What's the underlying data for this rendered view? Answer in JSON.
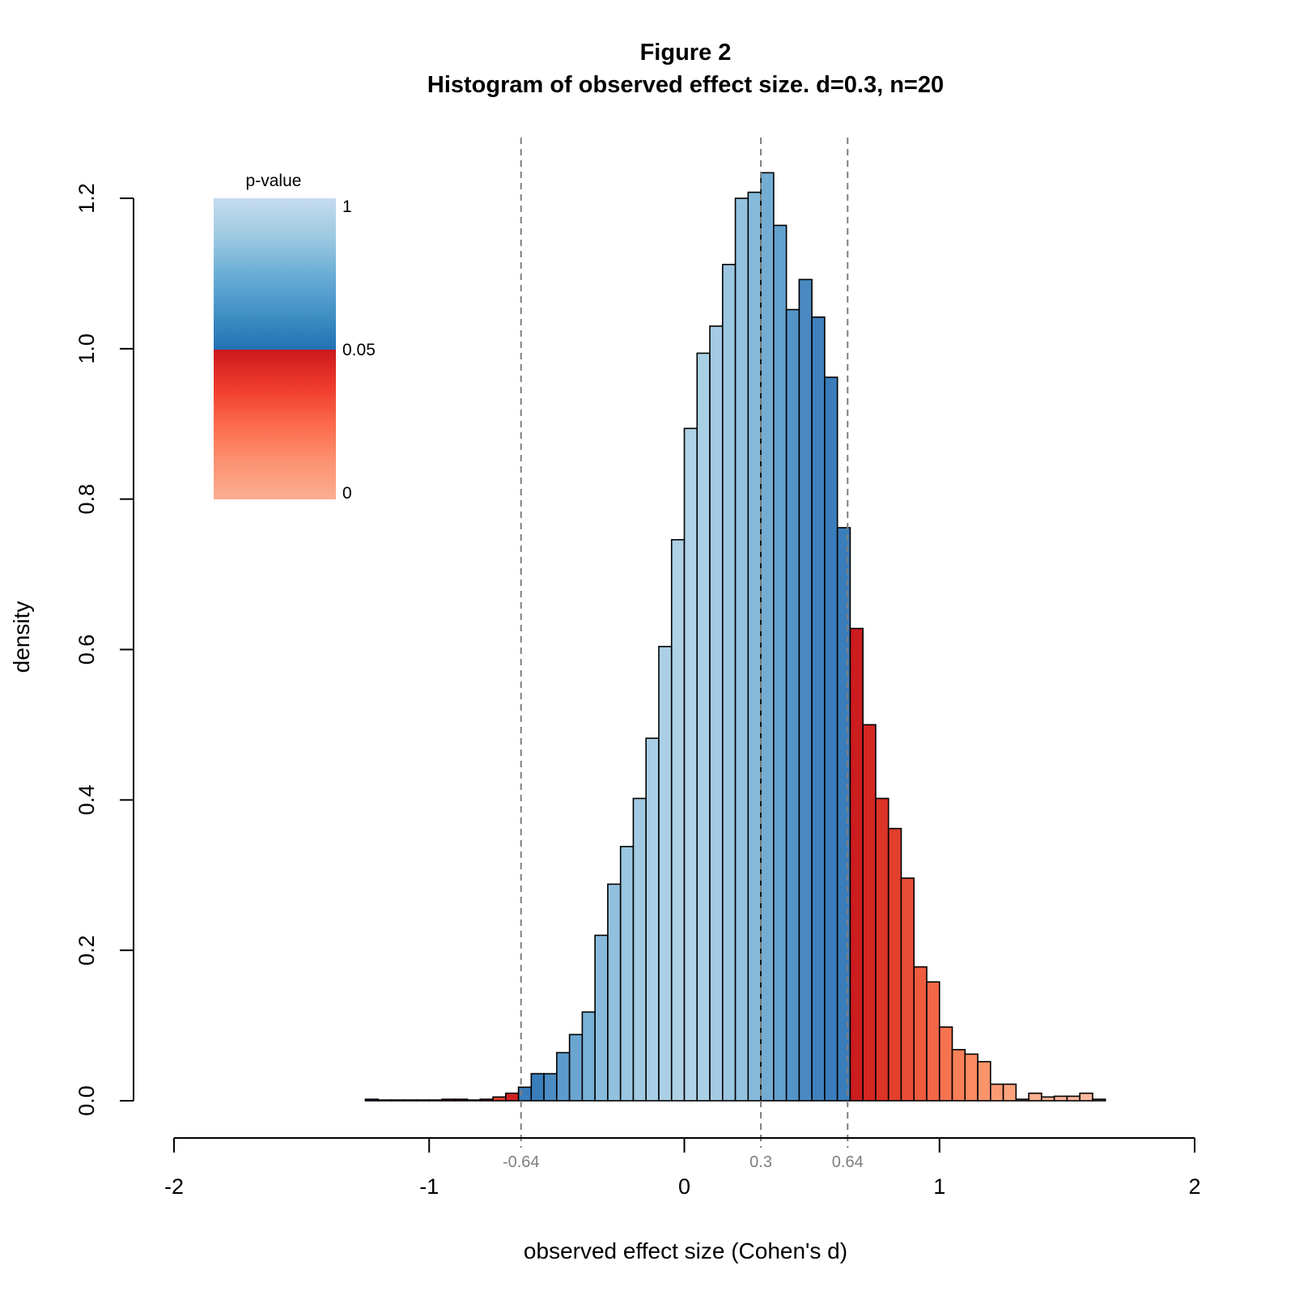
{
  "chart_data": {
    "type": "bar",
    "title": "Figure 2",
    "subtitle": "Histogram of observed effect size. d=0.3, n=20",
    "xlabel": "observed effect size (Cohen's d)",
    "ylabel": "density",
    "xlim": [
      -2,
      2
    ],
    "ylim": [
      0,
      1.2
    ],
    "x_ticks": [
      -2,
      -1,
      0,
      1,
      2
    ],
    "x_tick_labels": [
      "-2",
      "-1",
      "0",
      "1",
      "2"
    ],
    "y_ticks": [
      0,
      0.2,
      0.4,
      0.6,
      0.8,
      1.0,
      1.2
    ],
    "y_tick_labels": [
      "0.0",
      "0.2",
      "0.4",
      "0.6",
      "0.8",
      "1.0",
      "1.2"
    ],
    "bin_width": 0.05,
    "bin_start": -1.25,
    "values": [
      0.002,
      0.001,
      0.001,
      0.001,
      0.001,
      0.001,
      0.002,
      0.002,
      0.001,
      0.002,
      0.005,
      0.01,
      0.018,
      0.036,
      0.036,
      0.064,
      0.088,
      0.118,
      0.22,
      0.288,
      0.338,
      0.402,
      0.482,
      0.604,
      0.746,
      0.894,
      0.994,
      1.03,
      1.112,
      1.2,
      1.208,
      1.234,
      1.164,
      1.052,
      1.092,
      1.042,
      0.962,
      0.762,
      0.628,
      0.5,
      0.402,
      0.362,
      0.296,
      0.178,
      0.158,
      0.098,
      0.068,
      0.062,
      0.052,
      0.022,
      0.022,
      0.002,
      0.01,
      0.005,
      0.006,
      0.006,
      0.01,
      0.002
    ],
    "fills": [
      "#2166ac",
      "#2166ac",
      "#2166ac",
      "#2166ac",
      "#2166ac",
      "#2166ac",
      "#ca181d",
      "#ca181d",
      "#ca181d",
      "#d72b25",
      "#e2402d",
      "#d32021",
      "#3a7dbb",
      "#3a7dbb",
      "#4a8cc3",
      "#5c9ccc",
      "#6ba6d1",
      "#79b1d6",
      "#88bbdb",
      "#92c1de",
      "#9bc6e1",
      "#a2cbe3",
      "#a7cee4",
      "#abd0e5",
      "#afd2e6",
      "#afd2e6",
      "#a9cfe5",
      "#a4cbe3",
      "#9cc7e1",
      "#93c2de",
      "#86badb",
      "#74add4",
      "#63a1cf",
      "#5294c8",
      "#4988c1",
      "#3f81bd",
      "#3a7dbb",
      "#3a7dbb",
      "#cb1c1e",
      "#d42622",
      "#dc3427",
      "#e2402d",
      "#e84e35",
      "#ee5b3d",
      "#f26746",
      "#f5734f",
      "#f87f57",
      "#fa8a61",
      "#fb936b",
      "#fb9b75",
      "#fca27d",
      "#fca986",
      "#fcae8e",
      "#fcb194",
      "#fcb49a",
      "#fcb69e",
      "#fcb8a1",
      "#fcb8a1"
    ],
    "reference_lines": [
      {
        "x": -0.64,
        "label": "-0.64"
      },
      {
        "x": 0.3,
        "label": "0.3"
      },
      {
        "x": 0.64,
        "label": "0.64"
      }
    ],
    "legend": {
      "title": "p-value",
      "labels": [
        "1",
        "0.05",
        "0"
      ],
      "gradient_top": [
        "#c6dbef",
        "#9ecae1",
        "#6baed6",
        "#4292c6",
        "#2171b5"
      ],
      "gradient_bottom": [
        "#cb181d",
        "#ef3b2c",
        "#fb6a4a",
        "#fc9272",
        "#fcae91"
      ]
    },
    "line_color": "#7f7f7f",
    "bar_edge": "#000000"
  }
}
